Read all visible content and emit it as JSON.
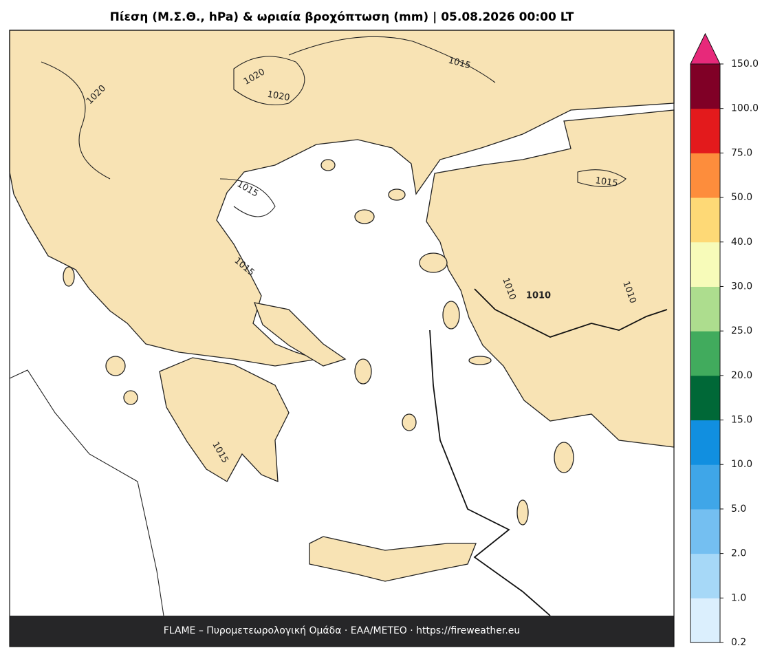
{
  "title": "Πίεση (Μ.Σ.Θ., hPa) & ωριαία βροχόπτωση (mm)  |  05.08.2026 00:00 LT",
  "map": {
    "contour_labels": [
      1020,
      1020,
      1020,
      1015,
      1015,
      1015,
      1015,
      1010,
      1010,
      1010,
      1015
    ]
  },
  "colorbar": {
    "ticks": [
      {
        "value": 0.2,
        "label": "0.2"
      },
      {
        "value": 1,
        "label": "1.0"
      },
      {
        "value": 2,
        "label": "2.0"
      },
      {
        "value": 5,
        "label": "5.0"
      },
      {
        "value": 10,
        "label": "10.0"
      },
      {
        "value": 15,
        "label": "15.0"
      },
      {
        "value": 20,
        "label": "20.0"
      },
      {
        "value": 25,
        "label": "25.0"
      },
      {
        "value": 30,
        "label": "30.0"
      },
      {
        "value": 40,
        "label": "40.0"
      },
      {
        "value": 50,
        "label": "50.0"
      },
      {
        "value": 75,
        "label": "75.0"
      },
      {
        "value": 100,
        "label": "100.0"
      },
      {
        "value": 150,
        "label": "150.0"
      }
    ],
    "colors": [
      "#dbeffd",
      "#a6d8f7",
      "#74bff1",
      "#3fa6e8",
      "#118fe0",
      "#006837",
      "#41ab5d",
      "#addd8e",
      "#f7fbb9",
      "#fed976",
      "#fd8d3c",
      "#e31a1c",
      "#800026"
    ],
    "extend_color": "#e7297a"
  },
  "footer": "FLAME – Πυρομετεωρολογική Ομάδα · ΕΑΑ/METEO · https://fireweather.eu"
}
